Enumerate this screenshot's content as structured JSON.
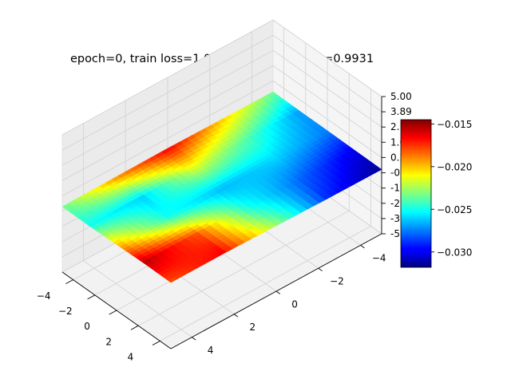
{
  "chart_data": {
    "type": "surface3d",
    "title": "epoch=0, train loss=1.0150, validation loss=0.9931",
    "x": {
      "label": "",
      "range": [
        -5,
        5
      ],
      "ticks": [
        {
          "value": -4,
          "label": "−4"
        },
        {
          "value": -2,
          "label": "−2"
        },
        {
          "value": 0,
          "label": "0"
        },
        {
          "value": 2,
          "label": "2"
        },
        {
          "value": 4,
          "label": "4"
        }
      ]
    },
    "y": {
      "label": "",
      "range": [
        -5,
        5
      ],
      "ticks": [
        {
          "value": -4,
          "label": "−4"
        },
        {
          "value": -2,
          "label": "−2"
        },
        {
          "value": 0,
          "label": "0"
        },
        {
          "value": 2,
          "label": "2"
        },
        {
          "value": 4,
          "label": "4"
        }
      ]
    },
    "z": {
      "label": "",
      "range": [
        -5,
        5
      ],
      "ticks": [
        {
          "value": 5.0,
          "label": "5.00"
        },
        {
          "value": 3.89,
          "label": "3.89"
        },
        {
          "value": 2.78,
          "label": "2.78"
        },
        {
          "value": 1.67,
          "label": "1.67"
        },
        {
          "value": 0.56,
          "label": "0.56"
        },
        {
          "value": -0.56,
          "label": "-0.56"
        },
        {
          "value": -1.67,
          "label": "-1.67"
        },
        {
          "value": -2.78,
          "label": "-2.78"
        },
        {
          "value": -3.89,
          "label": "-3.89"
        },
        {
          "value": -5.0,
          "label": "-5.00"
        }
      ]
    },
    "surface": {
      "colormap": "jet",
      "value_range": [
        -0.0318,
        -0.0145
      ],
      "grid": [
        -5,
        -2.5,
        0,
        2.5,
        5
      ],
      "values": [
        [
          -0.0235,
          -0.027,
          -0.0275,
          -0.03,
          -0.0315
        ],
        [
          -0.02,
          -0.024,
          -0.026,
          -0.028,
          -0.029
        ],
        [
          -0.0165,
          -0.0215,
          -0.0265,
          -0.025,
          -0.0225
        ],
        [
          -0.019,
          -0.026,
          -0.025,
          -0.018,
          -0.0165
        ],
        [
          -0.0235,
          -0.025,
          -0.02,
          -0.0155,
          -0.018
        ]
      ]
    },
    "colorbar": {
      "range": [
        -0.0318,
        -0.0145
      ],
      "ticks": [
        {
          "value": -0.015,
          "label": "−0.015"
        },
        {
          "value": -0.02,
          "label": "−0.020"
        },
        {
          "value": -0.025,
          "label": "−0.025"
        },
        {
          "value": -0.03,
          "label": "−0.030"
        }
      ]
    },
    "grid": true
  }
}
